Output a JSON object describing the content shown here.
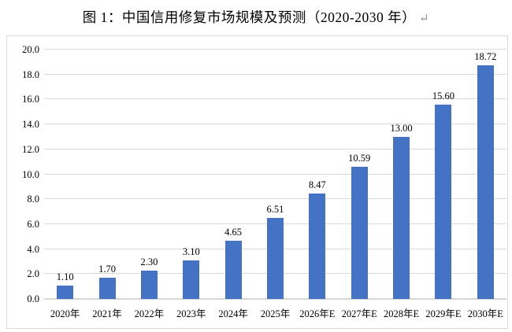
{
  "title": {
    "text": "图 1：中国信用修复市场规模及预测（2020-2030 年）",
    "return_mark": "↵"
  },
  "chart_data": {
    "type": "bar",
    "title": "图 1：中国信用修复市场规模及预测（2020-2030 年）",
    "categories": [
      "2020年",
      "2021年",
      "2022年",
      "2023年",
      "2024年",
      "2025年",
      "2026年E",
      "2027年E",
      "2028年E",
      "2029年E",
      "2030年E"
    ],
    "values": [
      1.1,
      1.7,
      2.3,
      3.1,
      4.65,
      6.51,
      8.47,
      10.59,
      13.0,
      15.6,
      18.72
    ],
    "value_labels": [
      "1.10",
      "1.70",
      "2.30",
      "3.10",
      "4.65",
      "6.51",
      "8.47",
      "10.59",
      "13.00",
      "15.60",
      "18.72"
    ],
    "xlabel": "",
    "ylabel": "",
    "ylim": [
      0,
      20
    ],
    "y_tick_step": 2,
    "y_tick_labels": [
      "0.0",
      "2.0",
      "4.0",
      "6.0",
      "8.0",
      "10.0",
      "12.0",
      "14.0",
      "16.0",
      "18.0",
      "20.0"
    ],
    "grid": true,
    "legend": "none",
    "bar_color": "#4472c4",
    "gridline_color": "#d9d9d9",
    "frame_color": "#d9d9d9"
  }
}
